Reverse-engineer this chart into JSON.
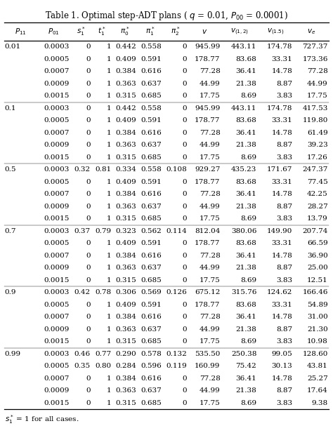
{
  "title": "Table 1. Optimal step-ADT plans ( q = 0.01, P_{00} = 0.0001)",
  "footnote": "s_1^* = 1 for all cases.",
  "rows": [
    [
      "0.01",
      "0.0003",
      "0",
      "1",
      "0.442",
      "0.558",
      "0",
      "945.99",
      "443.11",
      "174.78",
      "727.37"
    ],
    [
      "",
      "0.0005",
      "0",
      "1",
      "0.409",
      "0.591",
      "0",
      "178.77",
      "83.68",
      "33.31",
      "173.36"
    ],
    [
      "",
      "0.0007",
      "0",
      "1",
      "0.384",
      "0.616",
      "0",
      "77.28",
      "36.41",
      "14.78",
      "77.28"
    ],
    [
      "",
      "0.0009",
      "0",
      "1",
      "0.363",
      "0.637",
      "0",
      "44.99",
      "21.38",
      "8.87",
      "44.99"
    ],
    [
      "",
      "0.0015",
      "0",
      "1",
      "0.315",
      "0.685",
      "0",
      "17.75",
      "8.69",
      "3.83",
      "17.75"
    ],
    [
      "0.1",
      "0.0003",
      "0",
      "1",
      "0.442",
      "0.558",
      "0",
      "945.99",
      "443.11",
      "174.78",
      "417.53"
    ],
    [
      "",
      "0.0005",
      "0",
      "1",
      "0.409",
      "0.591",
      "0",
      "178.77",
      "83.68",
      "33.31",
      "119.80"
    ],
    [
      "",
      "0.0007",
      "0",
      "1",
      "0.384",
      "0.616",
      "0",
      "77.28",
      "36.41",
      "14.78",
      "61.49"
    ],
    [
      "",
      "0.0009",
      "0",
      "1",
      "0.363",
      "0.637",
      "0",
      "44.99",
      "21.38",
      "8.87",
      "39.23"
    ],
    [
      "",
      "0.0015",
      "0",
      "1",
      "0.315",
      "0.685",
      "0",
      "17.75",
      "8.69",
      "3.83",
      "17.26"
    ],
    [
      "0.5",
      "0.0003",
      "0.32",
      "0.81",
      "0.334",
      "0.558",
      "0.108",
      "929.27",
      "435.23",
      "171.67",
      "247.37"
    ],
    [
      "",
      "0.0005",
      "0",
      "1",
      "0.409",
      "0.591",
      "0",
      "178.77",
      "83.68",
      "33.31",
      "77.45"
    ],
    [
      "",
      "0.0007",
      "0",
      "1",
      "0.384",
      "0.616",
      "0",
      "77.28",
      "36.41",
      "14.78",
      "42.25"
    ],
    [
      "",
      "0.0009",
      "0",
      "1",
      "0.363",
      "0.637",
      "0",
      "44.99",
      "21.38",
      "8.87",
      "28.27"
    ],
    [
      "",
      "0.0015",
      "0",
      "1",
      "0.315",
      "0.685",
      "0",
      "17.75",
      "8.69",
      "3.83",
      "13.79"
    ],
    [
      "0.7",
      "0.0003",
      "0.37",
      "0.79",
      "0.323",
      "0.562",
      "0.114",
      "812.04",
      "380.06",
      "149.90",
      "207.74"
    ],
    [
      "",
      "0.0005",
      "0",
      "1",
      "0.409",
      "0.591",
      "0",
      "178.77",
      "83.68",
      "33.31",
      "66.59"
    ],
    [
      "",
      "0.0007",
      "0",
      "1",
      "0.384",
      "0.616",
      "0",
      "77.28",
      "36.41",
      "14.78",
      "36.90"
    ],
    [
      "",
      "0.0009",
      "0",
      "1",
      "0.363",
      "0.637",
      "0",
      "44.99",
      "21.38",
      "8.87",
      "25.00"
    ],
    [
      "",
      "0.0015",
      "0",
      "1",
      "0.315",
      "0.685",
      "0",
      "17.75",
      "8.69",
      "3.83",
      "12.51"
    ],
    [
      "0.9",
      "0.0003",
      "0.42",
      "0.78",
      "0.306",
      "0.569",
      "0.126",
      "675.12",
      "315.76",
      "124.62",
      "166.46"
    ],
    [
      "",
      "0.0005",
      "0",
      "1",
      "0.409",
      "0.591",
      "0",
      "178.77",
      "83.68",
      "33.31",
      "54.89"
    ],
    [
      "",
      "0.0007",
      "0",
      "1",
      "0.384",
      "0.616",
      "0",
      "77.28",
      "36.41",
      "14.78",
      "31.00"
    ],
    [
      "",
      "0.0009",
      "0",
      "1",
      "0.363",
      "0.637",
      "0",
      "44.99",
      "21.38",
      "8.87",
      "21.30"
    ],
    [
      "",
      "0.0015",
      "0",
      "1",
      "0.315",
      "0.685",
      "0",
      "17.75",
      "8.69",
      "3.83",
      "10.98"
    ],
    [
      "0.99",
      "0.0003",
      "0.46",
      "0.77",
      "0.290",
      "0.578",
      "0.132",
      "535.50",
      "250.38",
      "99.05",
      "128.60"
    ],
    [
      "",
      "0.0005",
      "0.35",
      "0.80",
      "0.284",
      "0.596",
      "0.119",
      "160.99",
      "75.42",
      "30.13",
      "43.81"
    ],
    [
      "",
      "0.0007",
      "0",
      "1",
      "0.384",
      "0.616",
      "0",
      "77.28",
      "36.41",
      "14.78",
      "25.27"
    ],
    [
      "",
      "0.0009",
      "0",
      "1",
      "0.363",
      "0.637",
      "0",
      "44.99",
      "21.38",
      "8.87",
      "17.64"
    ],
    [
      "",
      "0.0015",
      "0",
      "1",
      "0.315",
      "0.685",
      "0",
      "17.75",
      "8.69",
      "3.83",
      "9.38"
    ]
  ],
  "group_separators": [
    0,
    5,
    10,
    15,
    20,
    25
  ],
  "fontsize": 7.5,
  "header_fontsize": 8.5,
  "title_fontsize": 8.5
}
